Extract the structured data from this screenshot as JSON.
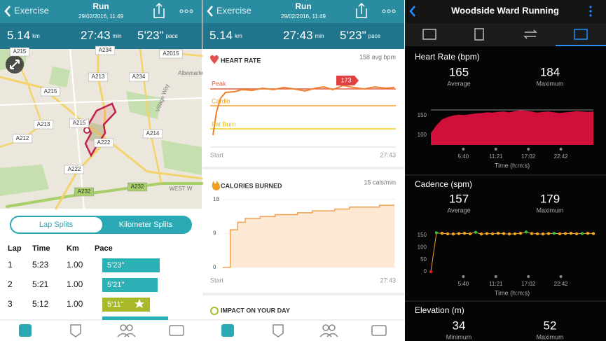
{
  "header": {
    "back": "Exercise",
    "title": "Run",
    "date": "29/02/2016, 11:49",
    "stats": [
      {
        "value": "5.14",
        "unit": "km"
      },
      {
        "value": "27:43",
        "unit": "min"
      },
      {
        "value": "5'23\"",
        "unit": "pace"
      }
    ]
  },
  "map": {
    "labels": [
      "A215",
      "A234",
      "A2015",
      "Albemarle",
      "A213",
      "A234",
      "A215",
      "A215",
      "A213",
      "A212",
      "A214",
      "A222",
      "A222",
      "A232",
      "A232",
      "Village Way",
      "WEST W"
    ]
  },
  "splits": {
    "tabs": [
      "Lap Splits",
      "Kilometer Splits"
    ],
    "columns": [
      "Lap",
      "Time",
      "Km",
      "Pace"
    ],
    "rows": [
      [
        "1",
        "5:23",
        "1.00",
        "5'23\""
      ],
      [
        "2",
        "5:21",
        "1.00",
        "5'21\""
      ],
      [
        "3",
        "5:12",
        "1.00",
        "5'11\""
      ]
    ]
  },
  "heart_rate": {
    "title": "HEART RATE",
    "summary": "158 avg bpm",
    "zones": [
      "Peak",
      "Cardio",
      "Fat Burn"
    ],
    "peak_label": "173",
    "x_start": "Start",
    "x_end": "27:43"
  },
  "calories": {
    "title": "CALORIES BURNED",
    "summary": "15 cals/min",
    "ylim": [
      0,
      18
    ],
    "yticks": [
      0,
      9,
      18
    ],
    "values": [
      0,
      10,
      12,
      13,
      13,
      13.5,
      13.5,
      14,
      14,
      14,
      14.5,
      14.5,
      15,
      15,
      15,
      15.5,
      15.5,
      16,
      16,
      16,
      16,
      16.5,
      16.5,
      16.5
    ],
    "x_start": "Start",
    "x_end": "27:43"
  },
  "impact": {
    "title": "IMPACT ON YOUR DAY"
  },
  "garmin": {
    "title": "Woodside Ward Running",
    "heart_rate": {
      "title": "Heart Rate (bpm)",
      "stats": [
        {
          "value": "165",
          "label": "Average"
        },
        {
          "value": "184",
          "label": "Maximum"
        }
      ],
      "ylim": [
        75,
        180
      ],
      "yticks": [
        100,
        150
      ],
      "color": "#d0103a",
      "values": [
        105,
        125,
        140,
        146,
        150,
        152,
        151,
        153,
        155,
        156,
        158,
        157,
        159,
        160,
        158,
        161,
        163,
        162,
        160,
        157,
        159,
        160,
        158,
        156,
        158,
        159,
        161,
        160,
        159,
        160
      ],
      "xticks": [
        "5:40",
        "11:21",
        "17:02",
        "22:42"
      ],
      "xlabel": "Time (h:m:s)"
    },
    "cadence": {
      "title": "Cadence (spm)",
      "stats": [
        {
          "value": "157",
          "label": "Average"
        },
        {
          "value": "179",
          "label": "Maximum"
        }
      ],
      "ylim": [
        0,
        175
      ],
      "yticks": [
        0,
        50,
        100,
        150
      ],
      "values": [
        0,
        160,
        158,
        156,
        155,
        157,
        158,
        156,
        162,
        155,
        157,
        156,
        158,
        157,
        155,
        156,
        158,
        163,
        157,
        156,
        155,
        157,
        158,
        156,
        157,
        158,
        156,
        157,
        158,
        157
      ],
      "colors": [
        "#e02020",
        "#30c040",
        "#f0a020",
        "#f0a020",
        "#f0a020",
        "#f0a020",
        "#f0a020",
        "#f0a020",
        "#30c040",
        "#f0a020",
        "#f0a020",
        "#f0a020",
        "#f0a020",
        "#f0a020",
        "#f0a020",
        "#f0a020",
        "#f0a020",
        "#30c040",
        "#f0a020",
        "#f0a020",
        "#f0a020",
        "#f0a020",
        "#30c040",
        "#f0a020",
        "#f0a020",
        "#f0a020",
        "#f0a020",
        "#30c040",
        "#f0a020",
        "#f0a020"
      ],
      "xticks": [
        "5:40",
        "11:21",
        "17:02",
        "22:42"
      ],
      "xlabel": "Time (h:m:s)"
    },
    "elevation": {
      "title": "Elevation (m)",
      "stats": [
        {
          "value": "34",
          "label": "Minimum"
        },
        {
          "value": "52",
          "label": "Maximum"
        }
      ]
    }
  }
}
